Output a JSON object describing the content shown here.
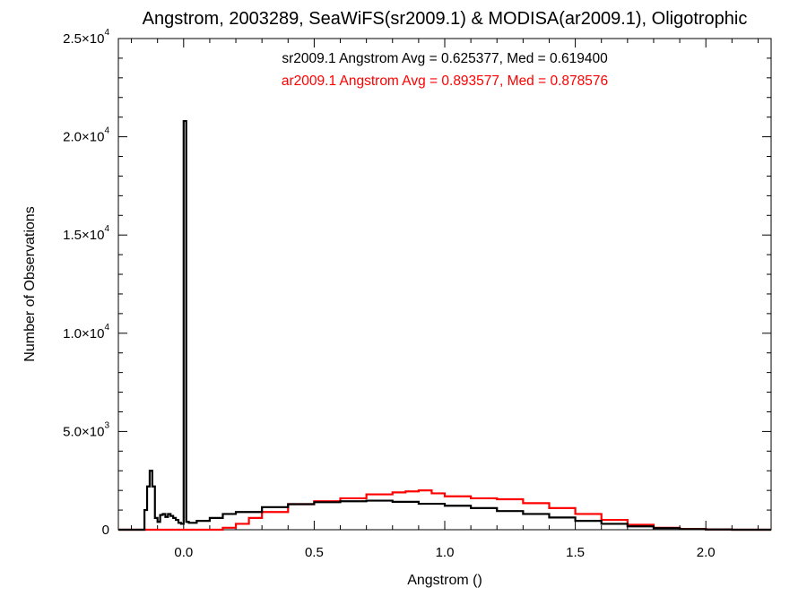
{
  "chart_data": {
    "type": "line",
    "title": "Angstrom, 2003289, SeaWiFS(sr2009.1) & MODISA(ar2009.1), Oligotrophic",
    "xlabel": "Angstrom ()",
    "ylabel": "Number of Observations",
    "xlim": [
      -0.25,
      2.25
    ],
    "ylim": [
      0,
      25000
    ],
    "grid": false,
    "x_ticks": [
      {
        "value": 0.0,
        "label": "0.0"
      },
      {
        "value": 0.5,
        "label": "0.5"
      },
      {
        "value": 1.0,
        "label": "1.0"
      },
      {
        "value": 1.5,
        "label": "1.5"
      },
      {
        "value": 2.0,
        "label": "2.0"
      }
    ],
    "y_ticks": [
      {
        "value": 0,
        "mant": "0",
        "exp": ""
      },
      {
        "value": 5000,
        "mant": "5.0×10",
        "exp": "3"
      },
      {
        "value": 10000,
        "mant": "1.0×10",
        "exp": "4"
      },
      {
        "value": 15000,
        "mant": "1.5×10",
        "exp": "4"
      },
      {
        "value": 20000,
        "mant": "2.0×10",
        "exp": "4"
      },
      {
        "value": 25000,
        "mant": "2.5×10",
        "exp": "4"
      }
    ],
    "annotations": [
      {
        "text": "sr2009.1 Angstrom Avg = 0.625377, Med = 0.619400",
        "color": "#000000"
      },
      {
        "text": "ar2009.1 Angstrom Avg = 0.893577, Med = 0.878576",
        "color": "#ff0000"
      }
    ],
    "series": [
      {
        "color": "#000000",
        "x": [
          -0.25,
          -0.16,
          -0.15,
          -0.14,
          -0.13,
          -0.12,
          -0.11,
          -0.1,
          -0.09,
          -0.08,
          -0.07,
          -0.06,
          -0.05,
          -0.04,
          -0.03,
          -0.02,
          -0.01,
          0.0,
          0.01,
          0.02,
          0.05,
          0.1,
          0.15,
          0.2,
          0.3,
          0.4,
          0.5,
          0.6,
          0.7,
          0.8,
          0.9,
          1.0,
          1.1,
          1.2,
          1.3,
          1.4,
          1.5,
          1.6,
          1.7,
          1.8,
          1.9,
          2.0,
          2.1,
          2.25
        ],
        "y": [
          0,
          0,
          1000,
          2200,
          3000,
          2200,
          600,
          400,
          750,
          800,
          650,
          800,
          700,
          600,
          500,
          350,
          300,
          20800,
          400,
          350,
          450,
          600,
          800,
          900,
          1150,
          1300,
          1400,
          1450,
          1480,
          1420,
          1320,
          1220,
          1100,
          950,
          800,
          620,
          450,
          300,
          170,
          80,
          30,
          10,
          0,
          0
        ]
      },
      {
        "color": "#ff0000",
        "x": [
          -0.25,
          0.0,
          0.1,
          0.15,
          0.2,
          0.25,
          0.3,
          0.4,
          0.5,
          0.6,
          0.7,
          0.8,
          0.85,
          0.9,
          0.95,
          1.0,
          1.1,
          1.2,
          1.3,
          1.4,
          1.5,
          1.6,
          1.7,
          1.8,
          1.9,
          2.0,
          2.1,
          2.25
        ],
        "y": [
          0,
          0,
          0,
          100,
          300,
          600,
          900,
          1300,
          1450,
          1600,
          1800,
          1900,
          1950,
          2000,
          1850,
          1700,
          1600,
          1550,
          1350,
          1100,
          800,
          500,
          250,
          100,
          40,
          10,
          0,
          0
        ]
      }
    ]
  }
}
